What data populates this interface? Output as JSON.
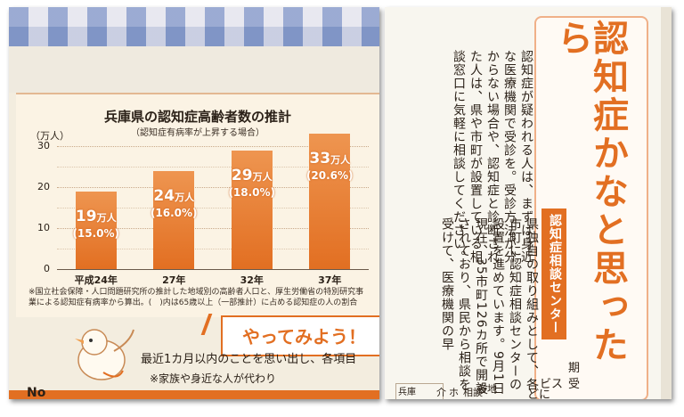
{
  "left_page": {
    "chart_data": {
      "type": "bar",
      "title": "兵庫県の認知症高齢者数の推計",
      "subtitle": "（認知症有病率が上昇する場合）",
      "ylabel": "（万人）",
      "ylim": [
        0,
        35
      ],
      "yticks": [
        "0",
        "10",
        "20",
        "30"
      ],
      "categories": [
        "平成24年",
        "27年",
        "32年",
        "37年"
      ],
      "values": [
        19,
        24,
        29,
        33
      ],
      "value_labels": [
        "19",
        "24",
        "29",
        "33"
      ],
      "value_unit": "万人",
      "percent_labels": [
        "(15.0%)",
        "(16.0%)",
        "(18.0%)",
        "(20.6%)"
      ],
      "bar_color": "#e26f22",
      "note": "※国立社会保障・人口問題研究所の推計した地域別の高齢者人口と、厚生労働省の特別研究事業による認知症有病率から算出。(　)内は65歳以上（一部推計）に占める認知症の人の割合"
    },
    "callout": {
      "title": "やってみよう！",
      "line1": "最近1カ月以内のことを思い出し、各項目",
      "line2": "※家族や身近な人が代わり"
    },
    "footer_label": "No",
    "mascot_icon": "bird-mascot-icon"
  },
  "right_page": {
    "title": "認知症かなと思ったら",
    "body1": "認知症が疑われる人は、まずは身近な医療機関で受診を。受診方法が分からない場合や、認知症と診断された人は、県や市町が設置している相談窓口に気軽に相談してください。",
    "badge": "認知症相談センター",
    "body2": "県独自の取り組みとして、各市町に認知症相談センターの設置を進めています。9月1日現在、35市町126カ所で開設されており、県民から相談を受けて、医療機関の早",
    "fragments": [
      "期",
      "受",
      "ビス",
      "どに",
      "兵庫",
      "各地",
      "相談",
      "ホ",
      "介"
    ]
  },
  "colors": {
    "accent": "#e26f22",
    "paper": "#f3eddf"
  }
}
